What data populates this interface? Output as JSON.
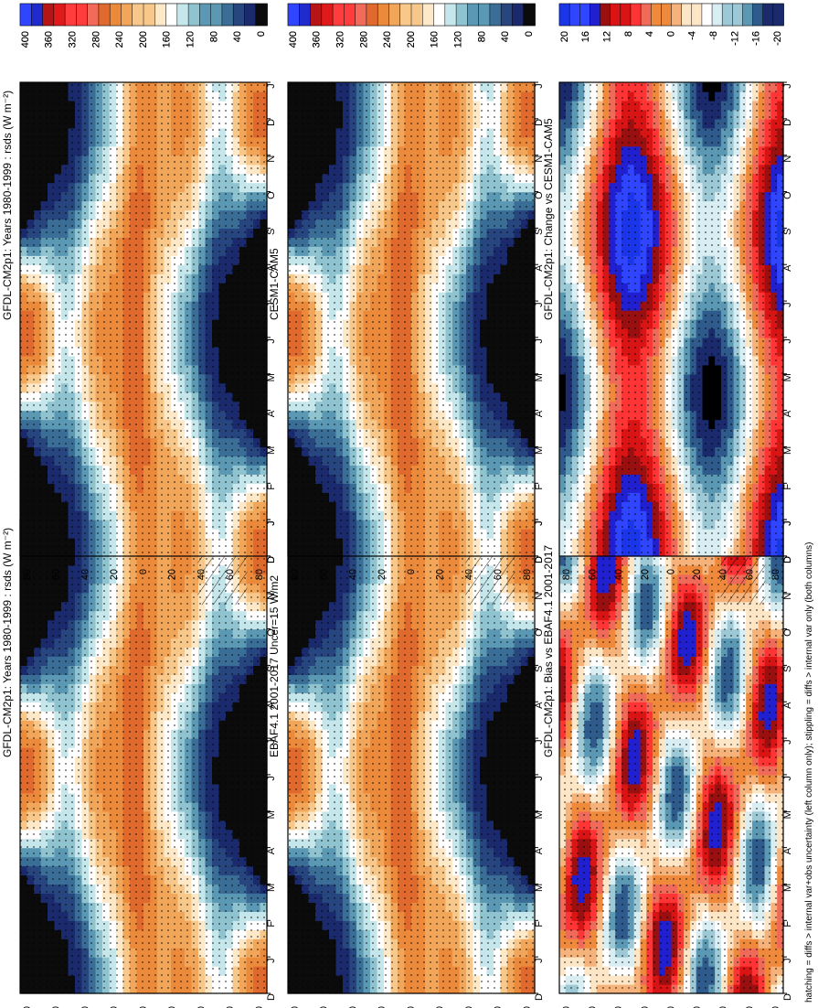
{
  "footnote": "hatching = diffs > internal var+obs uncertainty (left column only); stippling = diffs > internal var only (both columns)",
  "chart_data": [
    {
      "type": "heatmap",
      "title": "GFDL-CM2p1: Years 1980-1999 : rsds (W m⁻²)",
      "x_ticks": [
        "D",
        "J",
        "F",
        "M",
        "A",
        "M",
        "J",
        "J",
        "A",
        "S",
        "O",
        "N",
        "D",
        "J"
      ],
      "y_ticks": [
        "80",
        "60",
        "40",
        "20",
        "0",
        "20",
        "40",
        "60",
        "80"
      ],
      "y_note": "°N / °S",
      "colorbar_ticks": [
        "400",
        "360",
        "320",
        "280",
        "240",
        "200",
        "160",
        "120",
        "80",
        "40",
        "0"
      ],
      "field": "climatology",
      "hatching": true,
      "stippling": true
    },
    {
      "type": "heatmap",
      "title": "GFDL-CM2p1: Years 1980-1999 : rsds (W m⁻²)",
      "x_ticks": [
        "D",
        "J",
        "F",
        "M",
        "A",
        "M",
        "J",
        "J",
        "A",
        "S",
        "O",
        "N",
        "D",
        "J"
      ],
      "y_ticks": [
        "80",
        "60",
        "40",
        "20",
        "0",
        "20",
        "40",
        "60",
        "80"
      ],
      "y_note": "°N / °S",
      "colorbar_ticks": [
        "400",
        "360",
        "320",
        "280",
        "240",
        "200",
        "160",
        "120",
        "80",
        "40",
        "0"
      ],
      "field": "climatology",
      "hatching": false,
      "stippling": true
    },
    {
      "type": "heatmap",
      "title": "EBAF4.1 2001-2017 Uncer=15 W/m2",
      "x_ticks": [
        "D",
        "J",
        "F",
        "M",
        "A",
        "M",
        "J",
        "J",
        "A",
        "S",
        "O",
        "N",
        "D",
        "J"
      ],
      "y_ticks": [
        "80",
        "60",
        "40",
        "20",
        "0",
        "20",
        "40",
        "60",
        "80"
      ],
      "y_note": "°N / °S",
      "colorbar_ticks": [
        "400",
        "360",
        "320",
        "280",
        "240",
        "200",
        "160",
        "120",
        "80",
        "40",
        "0"
      ],
      "field": "climatology",
      "hatching": true,
      "stippling": true
    },
    {
      "type": "heatmap",
      "title": "CESM1-CAM5",
      "x_ticks": [
        "D",
        "J",
        "F",
        "M",
        "A",
        "M",
        "J",
        "J",
        "A",
        "S",
        "O",
        "N",
        "D",
        "J"
      ],
      "y_ticks": [
        "80",
        "60",
        "40",
        "20",
        "0",
        "20",
        "40",
        "60",
        "80"
      ],
      "y_note": "°N / °S",
      "colorbar_ticks": [
        "400",
        "360",
        "320",
        "280",
        "240",
        "200",
        "160",
        "120",
        "80",
        "40",
        "0"
      ],
      "field": "climatology",
      "hatching": false,
      "stippling": true
    },
    {
      "type": "heatmap",
      "title": "GFDL-CM2p1: Bias vs EBAF4.1 2001-2017",
      "x_ticks": [
        "D",
        "J",
        "F",
        "M",
        "A",
        "M",
        "J",
        "J",
        "A",
        "S",
        "O",
        "N",
        "D",
        "J"
      ],
      "y_ticks": [
        "80",
        "60",
        "40",
        "20",
        "0",
        "20",
        "40",
        "60",
        "80"
      ],
      "y_note": "°N / °S",
      "colorbar_ticks": [
        "20",
        "16",
        "12",
        "8",
        "4",
        "0",
        "-4",
        "-8",
        "-12",
        "-16",
        "-20"
      ],
      "field": "bias",
      "hatching": true,
      "stippling": true
    },
    {
      "type": "heatmap",
      "title": "GFDL-CM2p1: Change vs CESM1-CAM5",
      "x_ticks": [
        "D",
        "J",
        "F",
        "M",
        "A",
        "M",
        "J",
        "J",
        "A",
        "S",
        "O",
        "N",
        "D",
        "J"
      ],
      "y_ticks": [
        "80",
        "60",
        "40",
        "20",
        "0",
        "20",
        "40",
        "60",
        "80"
      ],
      "y_note": "°N / °S",
      "colorbar_ticks": [
        "20",
        "16",
        "12",
        "8",
        "4",
        "0",
        "-4",
        "-8",
        "-12",
        "-16",
        "-20"
      ],
      "field": "change",
      "hatching": false,
      "stippling": true
    }
  ],
  "colors": {
    "flux_scale": [
      "#0b0b0b",
      "#1a2a6c",
      "#27457e",
      "#3a6e96",
      "#5b98b4",
      "#8ec3cf",
      "#c5e6ea",
      "#ffffff",
      "#fde9c8",
      "#f7c88a",
      "#f2a65a",
      "#ec8a3c",
      "#e06a2e",
      "#f16a5a",
      "#ff3d3d",
      "#e01a1a",
      "#b51515",
      "#1f2bcc",
      "#2f45ff",
      "#1a36e8"
    ],
    "diff_scale": [
      "#000000",
      "#1a2a6c",
      "#2e5a8c",
      "#5b98b4",
      "#9cc9d5",
      "#d8eef2",
      "#ffffff",
      "#fde6c6",
      "#f5b27a",
      "#ef8a3c",
      "#f06a5a",
      "#ff3535",
      "#d81414",
      "#9a1010",
      "#2020d0",
      "#2f45ff",
      "#1a36e8"
    ]
  }
}
